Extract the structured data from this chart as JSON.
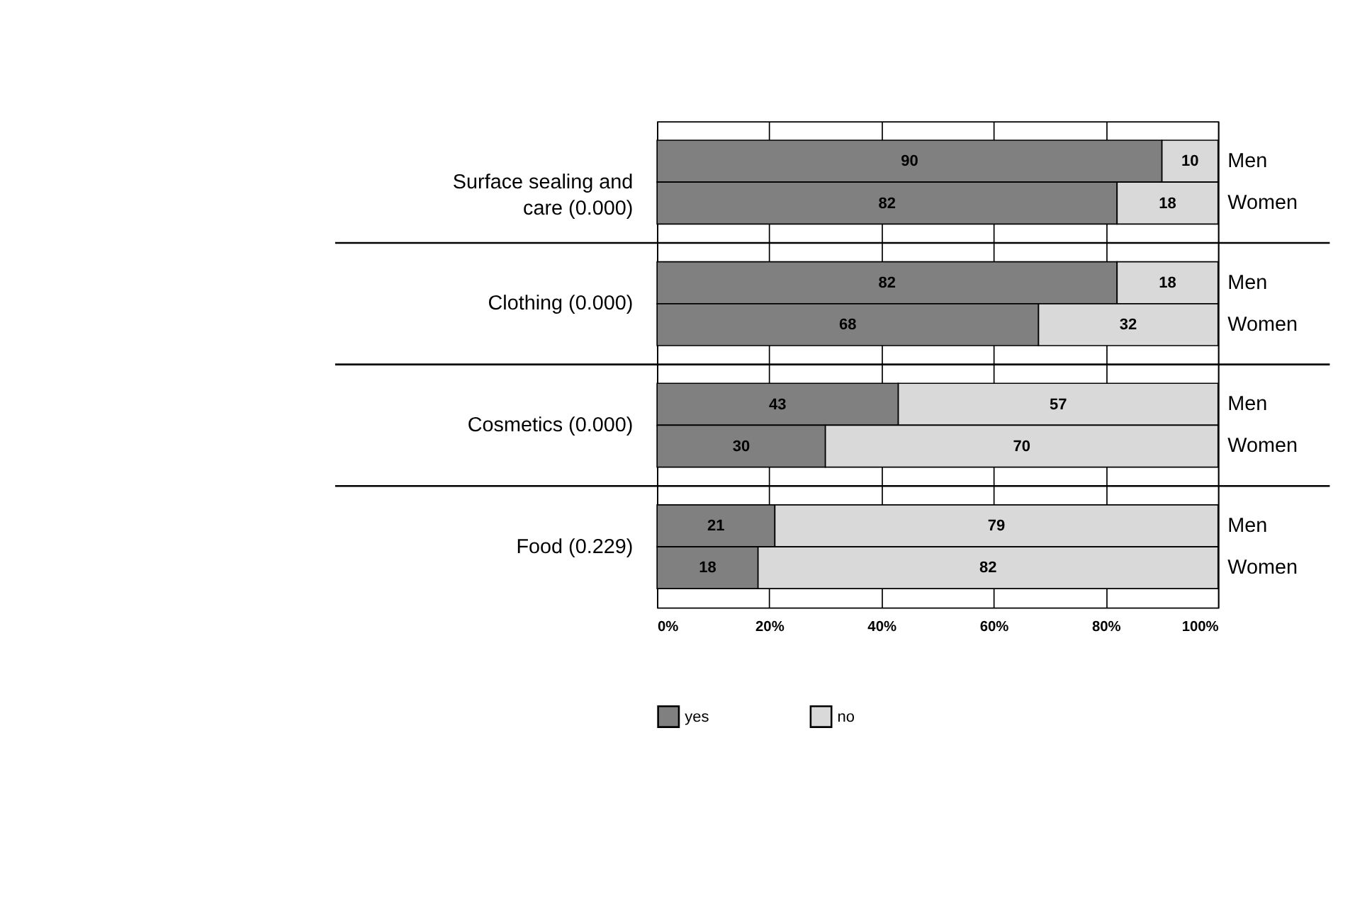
{
  "chart_data": {
    "type": "bar",
    "orientation": "horizontal",
    "stacked": true,
    "categories": [
      "Men",
      "Women",
      "Men",
      "Women",
      "Men",
      "Women",
      "Men",
      "Women"
    ],
    "annotations": [
      "Surface sealing and care (0.000)",
      "Clothing (0.000)",
      "Cosmetics (0.000)",
      "Food (0.229)"
    ],
    "series": [
      {
        "name": "yes",
        "color": "#808080",
        "values": [
          90,
          82,
          82,
          68,
          43,
          30,
          21,
          18
        ]
      },
      {
        "name": "no",
        "color": "#d9d9d9",
        "values": [
          10,
          18,
          18,
          32,
          57,
          70,
          79,
          82
        ]
      }
    ],
    "xlim": [
      0,
      100
    ],
    "xticks": [
      {
        "value": 0,
        "label": "0%"
      },
      {
        "value": 20,
        "label": "20%"
      },
      {
        "value": 40,
        "label": "40%"
      },
      {
        "value": 60,
        "label": "60%"
      },
      {
        "value": 80,
        "label": "80%"
      },
      {
        "value": 100,
        "label": "100%"
      }
    ],
    "grid": "x",
    "data_labels": true,
    "legend": "bottom"
  }
}
